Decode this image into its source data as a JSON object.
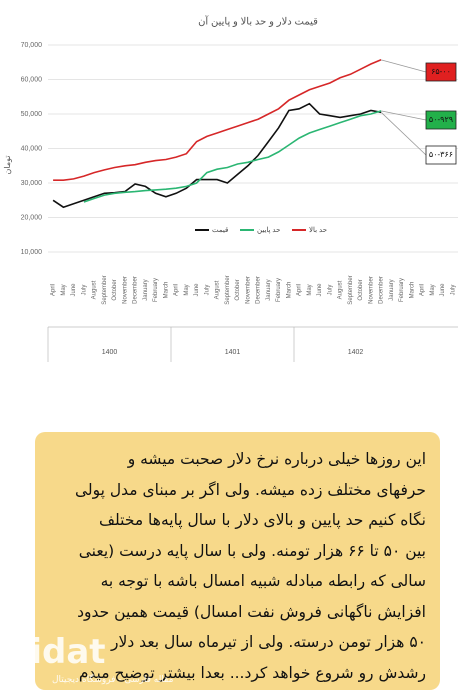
{
  "chart_data": {
    "type": "line",
    "title": "قیمت دلار و حد بالا و پایین آن",
    "y_label": "تومان",
    "categories": [
      "April",
      "May",
      "June",
      "July",
      "August",
      "September",
      "October",
      "November",
      "December",
      "January",
      "February",
      "March",
      "April",
      "May",
      "June",
      "July",
      "August",
      "September",
      "October",
      "November",
      "December",
      "January",
      "February",
      "March",
      "April",
      "May",
      "June",
      "July",
      "August",
      "September",
      "October",
      "November",
      "December",
      "January",
      "February",
      "March",
      "April",
      "May",
      "June",
      "July"
    ],
    "year_groups": [
      "1400",
      "1401",
      "1402"
    ],
    "series": [
      {
        "name": "قیمت",
        "color": "#111111",
        "values": [
          25,
          23,
          24,
          25,
          26,
          27,
          27.2,
          27.5,
          29.7,
          29,
          27,
          26,
          27,
          28.5,
          31,
          31,
          31,
          30,
          32.5,
          35,
          38,
          42,
          46,
          51,
          51.5,
          53,
          50,
          49.5,
          49,
          49.5,
          50,
          51,
          50.5,
          null,
          null,
          null,
          null,
          null,
          null,
          null
        ]
      },
      {
        "name": "حد پایین",
        "color": "#2bb673",
        "values": [
          null,
          null,
          null,
          24.5,
          25.5,
          26.5,
          27,
          27.3,
          27.5,
          27.8,
          28,
          28.2,
          28.5,
          29,
          30,
          33,
          34,
          34.5,
          35.5,
          36,
          36.8,
          37.5,
          39,
          41,
          43,
          44.5,
          45.5,
          46.5,
          47.5,
          48.5,
          49.5,
          50,
          50.9,
          null,
          null,
          null,
          null,
          null,
          null,
          null
        ]
      },
      {
        "name": "حد بالا",
        "color": "#d62728",
        "values": [
          30.8,
          30.8,
          31.2,
          32,
          33,
          33.8,
          34.5,
          35,
          35.3,
          36,
          36.5,
          36.8,
          37.5,
          38.5,
          42,
          43.5,
          44.5,
          45.5,
          46.5,
          47.5,
          48.5,
          50,
          51.5,
          54,
          55.5,
          57,
          58,
          59,
          60.5,
          61.5,
          63,
          64.5,
          65.7,
          null,
          null,
          null,
          null,
          null,
          null,
          null
        ]
      }
    ],
    "ylim": [
      10,
      70
    ],
    "yticks": [
      {
        "value": 10,
        "label": "10,000"
      },
      {
        "value": 20,
        "label": "20,000"
      },
      {
        "value": 30,
        "label": "30,000"
      },
      {
        "value": 40,
        "label": "40,000"
      },
      {
        "value": 50,
        "label": "50,000"
      },
      {
        "value": 60,
        "label": "60,000"
      },
      {
        "value": 70,
        "label": "70,000"
      }
    ],
    "grid": true,
    "legend": "bottom",
    "annotations": [
      {
        "text": "۶۵-۰۰",
        "color": "#e02020",
        "series": 2
      },
      {
        "text": "۵۰-۹۲۹",
        "color": "#22b04a",
        "series": 1
      },
      {
        "text": "۵۰-۳۶۶",
        "color": "#ffffff",
        "series": 0
      }
    ]
  },
  "note": {
    "lines": [
      "این روزها خیلی درباره نرخ دلار صحبت میشه و",
      "حرفهای مختلف زده میشه. ولی اگر بر مبنای مدل پولی",
      "نگاه کنیم حد پایین و بالای دلار با سال پایه‌ها مختلف",
      "بین ۵۰ تا ۶۶ هزار تومنه. ولی با سال پایه درست (یعنی",
      "سالی که رابطه مبادله شبیه امسال باشه با توجه به",
      "افزایش ناگهانی فروش نفت امسال) قیمت همین حدود",
      "۵۰ هزار تومن درسته. ولی از تیرماه سال بعد دلار",
      "رشدش رو شروع خواهد کرد... بعدا بیشتر توضیح میدم"
    ]
  },
  "watermark": {
    "logo": "gidat",
    "caption": "مقاله فارسی - فروشگاه دیجیتال"
  }
}
